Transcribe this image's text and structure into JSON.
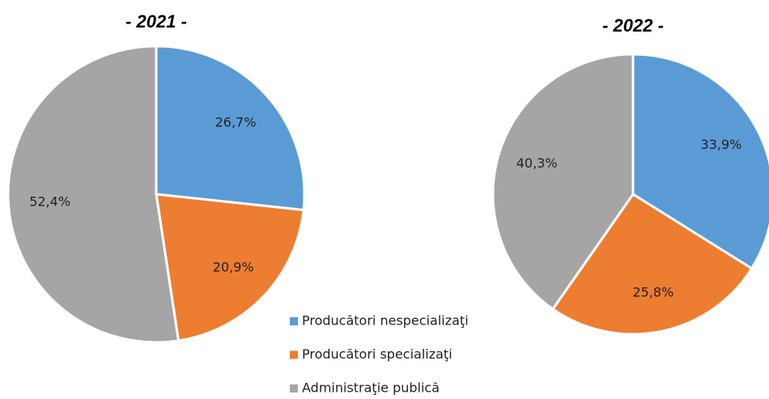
{
  "chart_data": [
    {
      "type": "pie",
      "title": "- 2021 -",
      "categories": [
        "Producători nespecializaţi",
        "Producători specializaţi",
        "Administraţie publică"
      ],
      "values": [
        26.7,
        20.9,
        52.4
      ],
      "value_labels": [
        "26,7%",
        "20,9%",
        "52,4%"
      ],
      "colors": [
        "#5b9bd5",
        "#ed7d31",
        "#a5a5a5"
      ]
    },
    {
      "type": "pie",
      "title": "- 2022 -",
      "categories": [
        "Producători nespecializaţi",
        "Producători specializaţi",
        "Administraţie publică"
      ],
      "values": [
        33.9,
        25.8,
        40.3
      ],
      "value_labels": [
        "33,9%",
        "25,8%",
        "40,3%"
      ],
      "colors": [
        "#5b9bd5",
        "#ed7d31",
        "#a5a5a5"
      ]
    }
  ]
}
